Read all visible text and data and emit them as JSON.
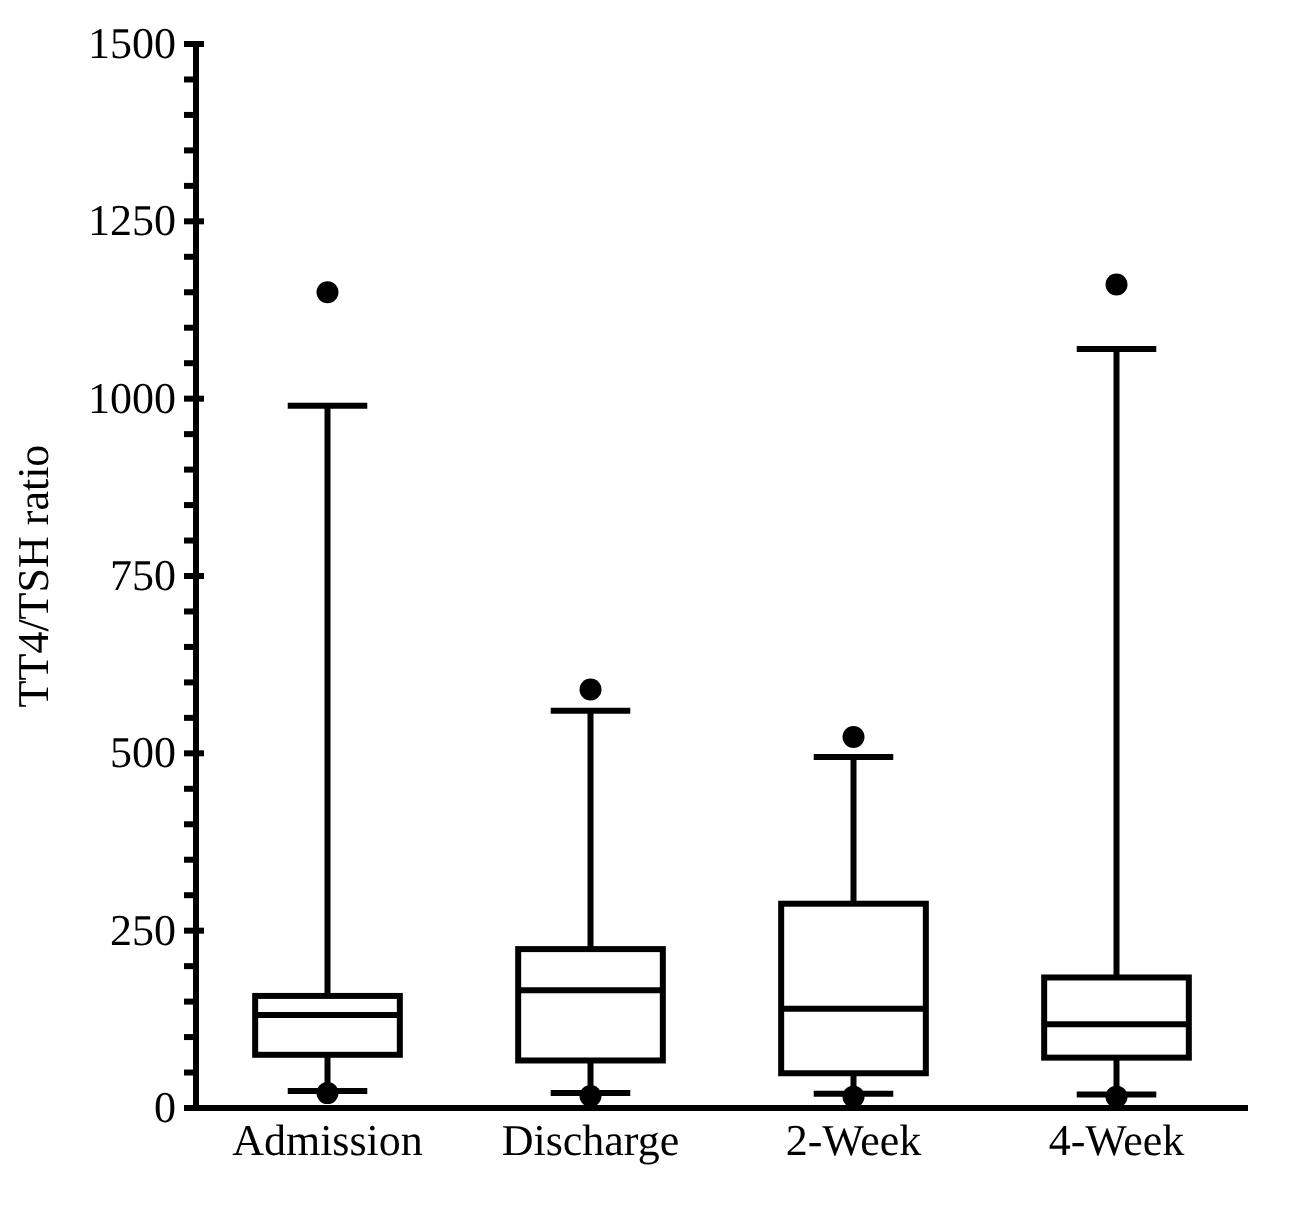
{
  "chart_data": {
    "type": "box",
    "ylabel": "TT4/TSH ratio",
    "categories": [
      "Admission",
      "Discharge",
      "2-Week",
      "4-Week"
    ],
    "boxes": [
      {
        "low": 24,
        "q1": 75,
        "median": 131,
        "q3": 158,
        "high": 990,
        "outliers": [
          1150,
          21
        ]
      },
      {
        "low": 21,
        "q1": 67,
        "median": 166,
        "q3": 224,
        "high": 560,
        "outliers": [
          590,
          17
        ]
      },
      {
        "low": 20,
        "q1": 49,
        "median": 140,
        "q3": 288,
        "high": 495,
        "outliers": [
          523,
          16
        ]
      },
      {
        "low": 19,
        "q1": 71,
        "median": 118,
        "q3": 184,
        "high": 1070,
        "outliers": [
          1161,
          16
        ]
      }
    ],
    "color": "#000000",
    "ylim": [
      0,
      1500
    ],
    "yticks": [
      0,
      {
        "value": 50,
        "label": null
      },
      {
        "value": 100,
        "label": null
      },
      {
        "value": 150,
        "label": null
      },
      {
        "value": 200,
        "label": null
      },
      250,
      {
        "value": 300,
        "label": null
      },
      {
        "value": 350,
        "label": null
      },
      {
        "value": 400,
        "label": null
      },
      {
        "value": 450,
        "label": null
      },
      500,
      {
        "value": 550,
        "label": null
      },
      {
        "value": 600,
        "label": null
      },
      {
        "value": 650,
        "label": null
      },
      {
        "value": 700,
        "label": null
      },
      750,
      {
        "value": 800,
        "label": null
      },
      {
        "value": 850,
        "label": null
      },
      {
        "value": 900,
        "label": null
      },
      {
        "value": 950,
        "label": null
      },
      1000,
      {
        "value": 1050,
        "label": null
      },
      {
        "value": 1100,
        "label": null
      },
      {
        "value": 1150,
        "label": null
      },
      {
        "value": 1200,
        "label": null
      },
      1250,
      {
        "value": 1300,
        "label": null
      },
      {
        "value": 1350,
        "label": null
      },
      {
        "value": 1400,
        "label": null
      },
      {
        "value": 1450,
        "label": null
      },
      1500
    ],
    "grid": false
  }
}
